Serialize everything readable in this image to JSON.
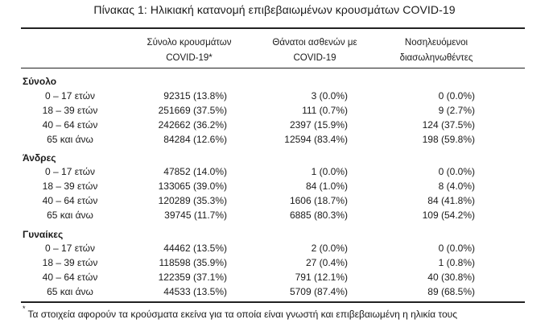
{
  "title": "Πίνακας 1: Ηλικιακή κατανομή επιβεβαιωμένων κρουσμάτων COVID-19",
  "headers": {
    "col1": [
      "Σύνολο κρουσμάτων",
      "COVID-19*"
    ],
    "col2": [
      "Θάνατοι ασθενών με",
      "COVID-19"
    ],
    "col3": [
      "Νοσηλευόμενοι",
      "διασωληνωθέντες"
    ]
  },
  "sections": [
    {
      "title": "Σύνολο",
      "rows": [
        {
          "age": "0 – 17 ετών",
          "cases": "92315 (13.8%)",
          "deaths": "3 (0.0%)",
          "intubated": "0 (0.0%)"
        },
        {
          "age": "18 – 39 ετών",
          "cases": "251669 (37.5%)",
          "deaths": "111 (0.7%)",
          "intubated": "9 (2.7%)"
        },
        {
          "age": "40 – 64 ετών",
          "cases": "242662 (36.2%)",
          "deaths": "2397 (15.9%)",
          "intubated": "124 (37.5%)"
        },
        {
          "age": "65 και άνω",
          "cases": "84284 (12.6%)",
          "deaths": "12594 (83.4%)",
          "intubated": "198 (59.8%)"
        }
      ]
    },
    {
      "title": "Άνδρες",
      "rows": [
        {
          "age": "0 – 17 ετών",
          "cases": "47852 (14.0%)",
          "deaths": "1 (0.0%)",
          "intubated": "0 (0.0%)"
        },
        {
          "age": "18 – 39 ετών",
          "cases": "133065 (39.0%)",
          "deaths": "84 (1.0%)",
          "intubated": "8 (4.0%)"
        },
        {
          "age": "40 – 64 ετών",
          "cases": "120289 (35.3%)",
          "deaths": "1606 (18.7%)",
          "intubated": "84 (41.8%)"
        },
        {
          "age": "65 και άνω",
          "cases": "39745 (11.7%)",
          "deaths": "6885 (80.3%)",
          "intubated": "109 (54.2%)"
        }
      ]
    },
    {
      "title": "Γυναίκες",
      "rows": [
        {
          "age": "0 – 17 ετών",
          "cases": "44462 (13.5%)",
          "deaths": "2 (0.0%)",
          "intubated": "0 (0.0%)"
        },
        {
          "age": "18 – 39 ετών",
          "cases": "118598 (35.9%)",
          "deaths": "27 (0.4%)",
          "intubated": "1 (0.8%)"
        },
        {
          "age": "40 – 64 ετών",
          "cases": "122359 (37.1%)",
          "deaths": "791 (12.1%)",
          "intubated": "40 (30.8%)"
        },
        {
          "age": "65 και άνω",
          "cases": "44533 (13.5%)",
          "deaths": "5709 (87.4%)",
          "intubated": "89 (68.5%)"
        }
      ]
    }
  ],
  "footnote": {
    "marker": "*",
    "text": "Τα στοιχεία αφορούν τα κρούσματα εκείνα για τα οποία είναι γνωστή και επιβεβαιωμένη η ηλικία τους"
  }
}
